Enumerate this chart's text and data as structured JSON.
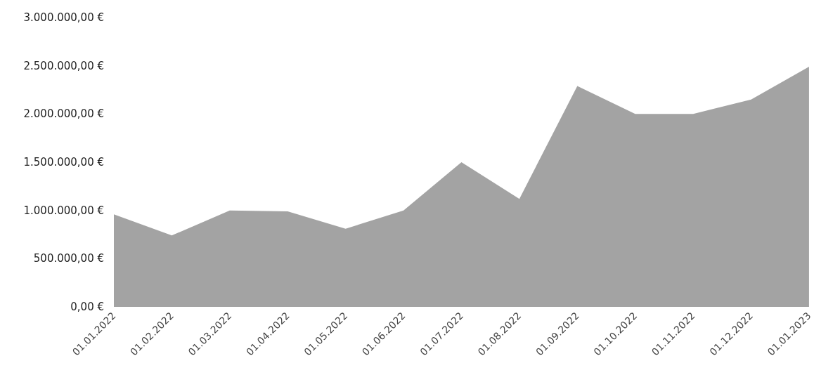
{
  "chart_data": {
    "type": "area",
    "categories": [
      "01.01.2022",
      "01.02.2022",
      "01.03.2022",
      "01.04.2022",
      "01.05.2022",
      "01.06.2022",
      "01.07.2022",
      "01.08.2022",
      "01.09.2022",
      "01.10.2022",
      "01.11.2022",
      "01.12.2022",
      "01.01.2023"
    ],
    "series": [
      {
        "color": "#a3a3a3",
        "values": [
          960000,
          740000,
          1000000,
          990000,
          810000,
          1000000,
          1500000,
          1120000,
          2290000,
          2000000,
          2000000,
          2150000,
          2490000
        ]
      }
    ],
    "ylim": [
      0,
      3000000
    ],
    "yticks": [
      {
        "value": 0,
        "label": "0,00 €"
      },
      {
        "value": 500000,
        "label": "500.000,00 €"
      },
      {
        "value": 1000000,
        "label": "1.000.000,00 €"
      },
      {
        "value": 1500000,
        "label": "1.500.000,00 €"
      },
      {
        "value": 2000000,
        "label": "2.000.000,00 €"
      },
      {
        "value": 2500000,
        "label": "2.500.000,00 €"
      },
      {
        "value": 3000000,
        "label": "3.000.000,00 €"
      }
    ],
    "grid": false
  }
}
